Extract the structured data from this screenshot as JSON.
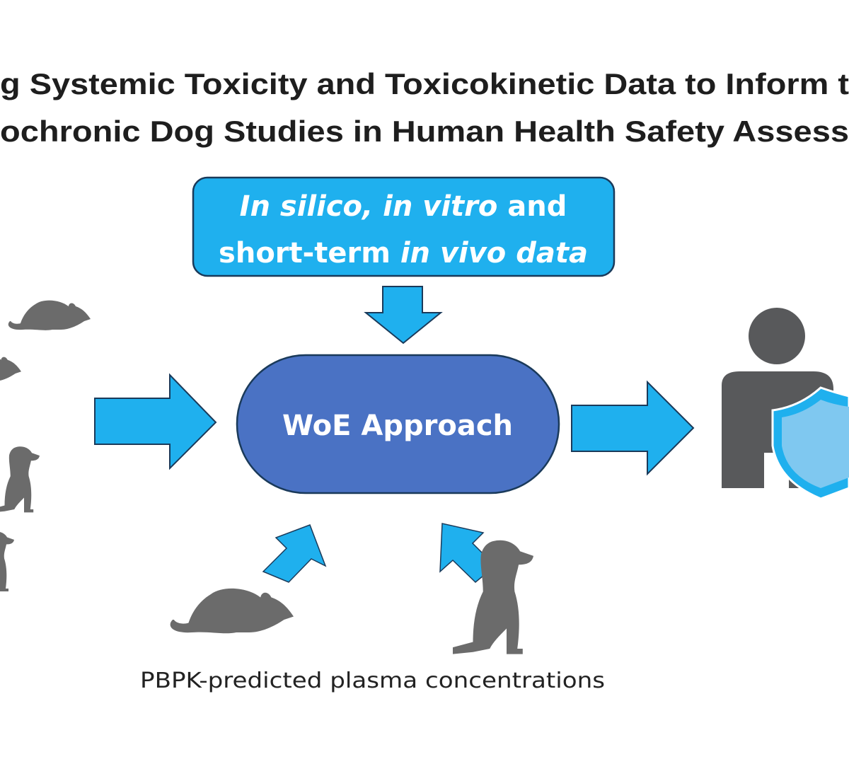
{
  "title": {
    "line1": "g Systemic Toxicity and Toxicokinetic Data to Inform t",
    "line2": "ochronic Dog Studies in  Human Health Safety Assess"
  },
  "input_box": {
    "line1_italic": "In silico, in vitro",
    "line1_plain": " and",
    "line2_plain": "short-term ",
    "line2_italic": "in vivo data"
  },
  "center": {
    "label": "WoE Approach"
  },
  "caption": "PBPK-predicted plasma concentrations",
  "icons": [
    "rat-icon",
    "dog-icon",
    "person-icon",
    "shield-icon",
    "arrow-icon"
  ],
  "colors": {
    "arrow": "#1fb0ee",
    "box": "#1fb0ee",
    "pill": "#4a72c4",
    "outline": "#1a3a5a",
    "silhouette": "#6b6b6b",
    "shield": "#7fc8f0"
  }
}
